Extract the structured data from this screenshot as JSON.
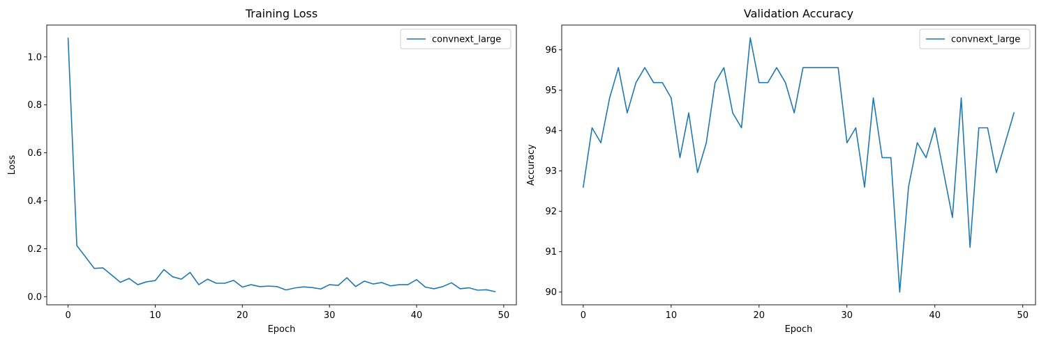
{
  "chart_data": [
    {
      "type": "line",
      "title": "Training Loss",
      "xlabel": "Epoch",
      "ylabel": "Loss",
      "xlim": [
        -2.45,
        51.45
      ],
      "ylim": [
        -0.034,
        1.133
      ],
      "xticks": [
        0,
        10,
        20,
        30,
        40,
        50
      ],
      "yticks": [
        0.0,
        0.2,
        0.4,
        0.6,
        0.8,
        1.0
      ],
      "ytick_labels": [
        "0.0",
        "0.2",
        "0.4",
        "0.6",
        "0.8",
        "1.0"
      ],
      "grid": false,
      "legend": "top-right",
      "color": "#1f77b4",
      "series": [
        {
          "name": "convnext_large",
          "x": [
            0,
            1,
            2,
            3,
            4,
            5,
            6,
            7,
            8,
            9,
            10,
            11,
            12,
            13,
            14,
            15,
            16,
            17,
            18,
            19,
            20,
            21,
            22,
            23,
            24,
            25,
            26,
            27,
            28,
            29,
            30,
            31,
            32,
            33,
            34,
            35,
            36,
            37,
            38,
            39,
            40,
            41,
            42,
            43,
            44,
            45,
            46,
            47,
            48,
            49
          ],
          "y": [
            1.078,
            0.213,
            0.166,
            0.118,
            0.12,
            0.09,
            0.06,
            0.076,
            0.05,
            0.062,
            0.067,
            0.113,
            0.083,
            0.073,
            0.101,
            0.05,
            0.073,
            0.056,
            0.056,
            0.068,
            0.04,
            0.05,
            0.042,
            0.044,
            0.042,
            0.028,
            0.036,
            0.041,
            0.038,
            0.032,
            0.05,
            0.047,
            0.079,
            0.042,
            0.065,
            0.053,
            0.059,
            0.045,
            0.05,
            0.05,
            0.071,
            0.04,
            0.033,
            0.042,
            0.058,
            0.033,
            0.037,
            0.027,
            0.029,
            0.021
          ]
        }
      ]
    },
    {
      "type": "line",
      "title": "Validation Accuracy",
      "xlabel": "Epoch",
      "ylabel": "Accuracy",
      "xlim": [
        -2.45,
        51.45
      ],
      "ylim": [
        89.685,
        96.615
      ],
      "xticks": [
        0,
        10,
        20,
        30,
        40,
        50
      ],
      "yticks": [
        90,
        91,
        92,
        93,
        94,
        95,
        96
      ],
      "ytick_labels": [
        "90",
        "91",
        "92",
        "93",
        "94",
        "95",
        "96"
      ],
      "grid": false,
      "legend": "top-right",
      "color": "#1f77b4",
      "series": [
        {
          "name": "convnext_large",
          "x": [
            0,
            1,
            2,
            3,
            4,
            5,
            6,
            7,
            8,
            9,
            10,
            11,
            12,
            13,
            14,
            15,
            16,
            17,
            18,
            19,
            20,
            21,
            22,
            23,
            24,
            25,
            26,
            27,
            28,
            29,
            30,
            31,
            32,
            33,
            34,
            35,
            36,
            37,
            38,
            39,
            40,
            41,
            42,
            43,
            44,
            45,
            46,
            47,
            48,
            49
          ],
          "y": [
            92.6,
            94.07,
            93.7,
            94.81,
            95.56,
            94.44,
            95.19,
            95.56,
            95.19,
            95.19,
            94.81,
            93.33,
            94.44,
            92.96,
            93.7,
            95.19,
            95.56,
            94.44,
            94.07,
            96.3,
            95.19,
            95.19,
            95.56,
            95.19,
            94.44,
            95.56,
            95.56,
            95.56,
            95.56,
            95.56,
            93.7,
            94.07,
            92.6,
            94.81,
            93.33,
            93.33,
            90.0,
            92.6,
            93.7,
            93.33,
            94.07,
            92.96,
            91.85,
            94.81,
            91.11,
            94.07,
            94.07,
            92.96,
            93.7,
            94.44
          ]
        }
      ]
    }
  ]
}
